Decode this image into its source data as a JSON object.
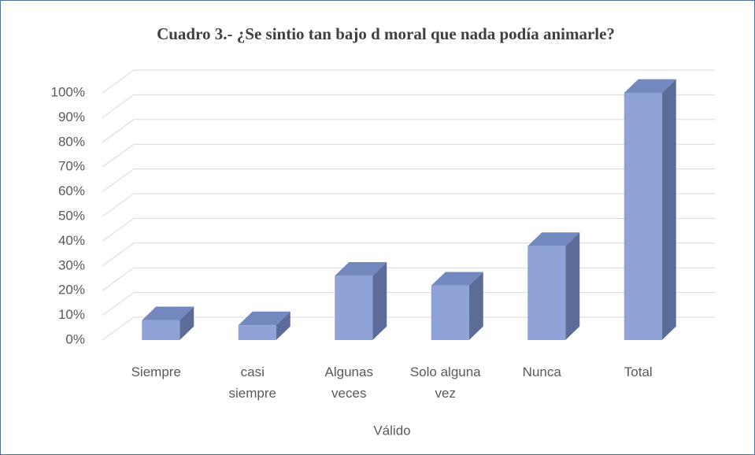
{
  "chart_data": {
    "type": "bar3d",
    "title": "Cuadro 3.- ¿Se sintio tan bajo d moral que nada podía animarle?",
    "x_label": "Válido",
    "categories": [
      "Siempre",
      "casi siempre",
      "Algunas veces",
      "Solo alguna vez",
      "Nunca",
      "Total"
    ],
    "values": [
      8,
      6,
      26,
      22,
      38,
      100
    ],
    "color": "#8fa3d8",
    "ylim": [
      0,
      100
    ],
    "yticks": [
      {
        "value": 0,
        "label": "0%"
      },
      {
        "value": 10,
        "label": "10%"
      },
      {
        "value": 20,
        "label": "20%"
      },
      {
        "value": 30,
        "label": "30%"
      },
      {
        "value": 40,
        "label": "40%"
      },
      {
        "value": 50,
        "label": "50%"
      },
      {
        "value": 60,
        "label": "60%"
      },
      {
        "value": 70,
        "label": "70%"
      },
      {
        "value": 80,
        "label": "80%"
      },
      {
        "value": 90,
        "label": "90%"
      },
      {
        "value": 100,
        "label": "100%"
      }
    ],
    "grid": true
  }
}
